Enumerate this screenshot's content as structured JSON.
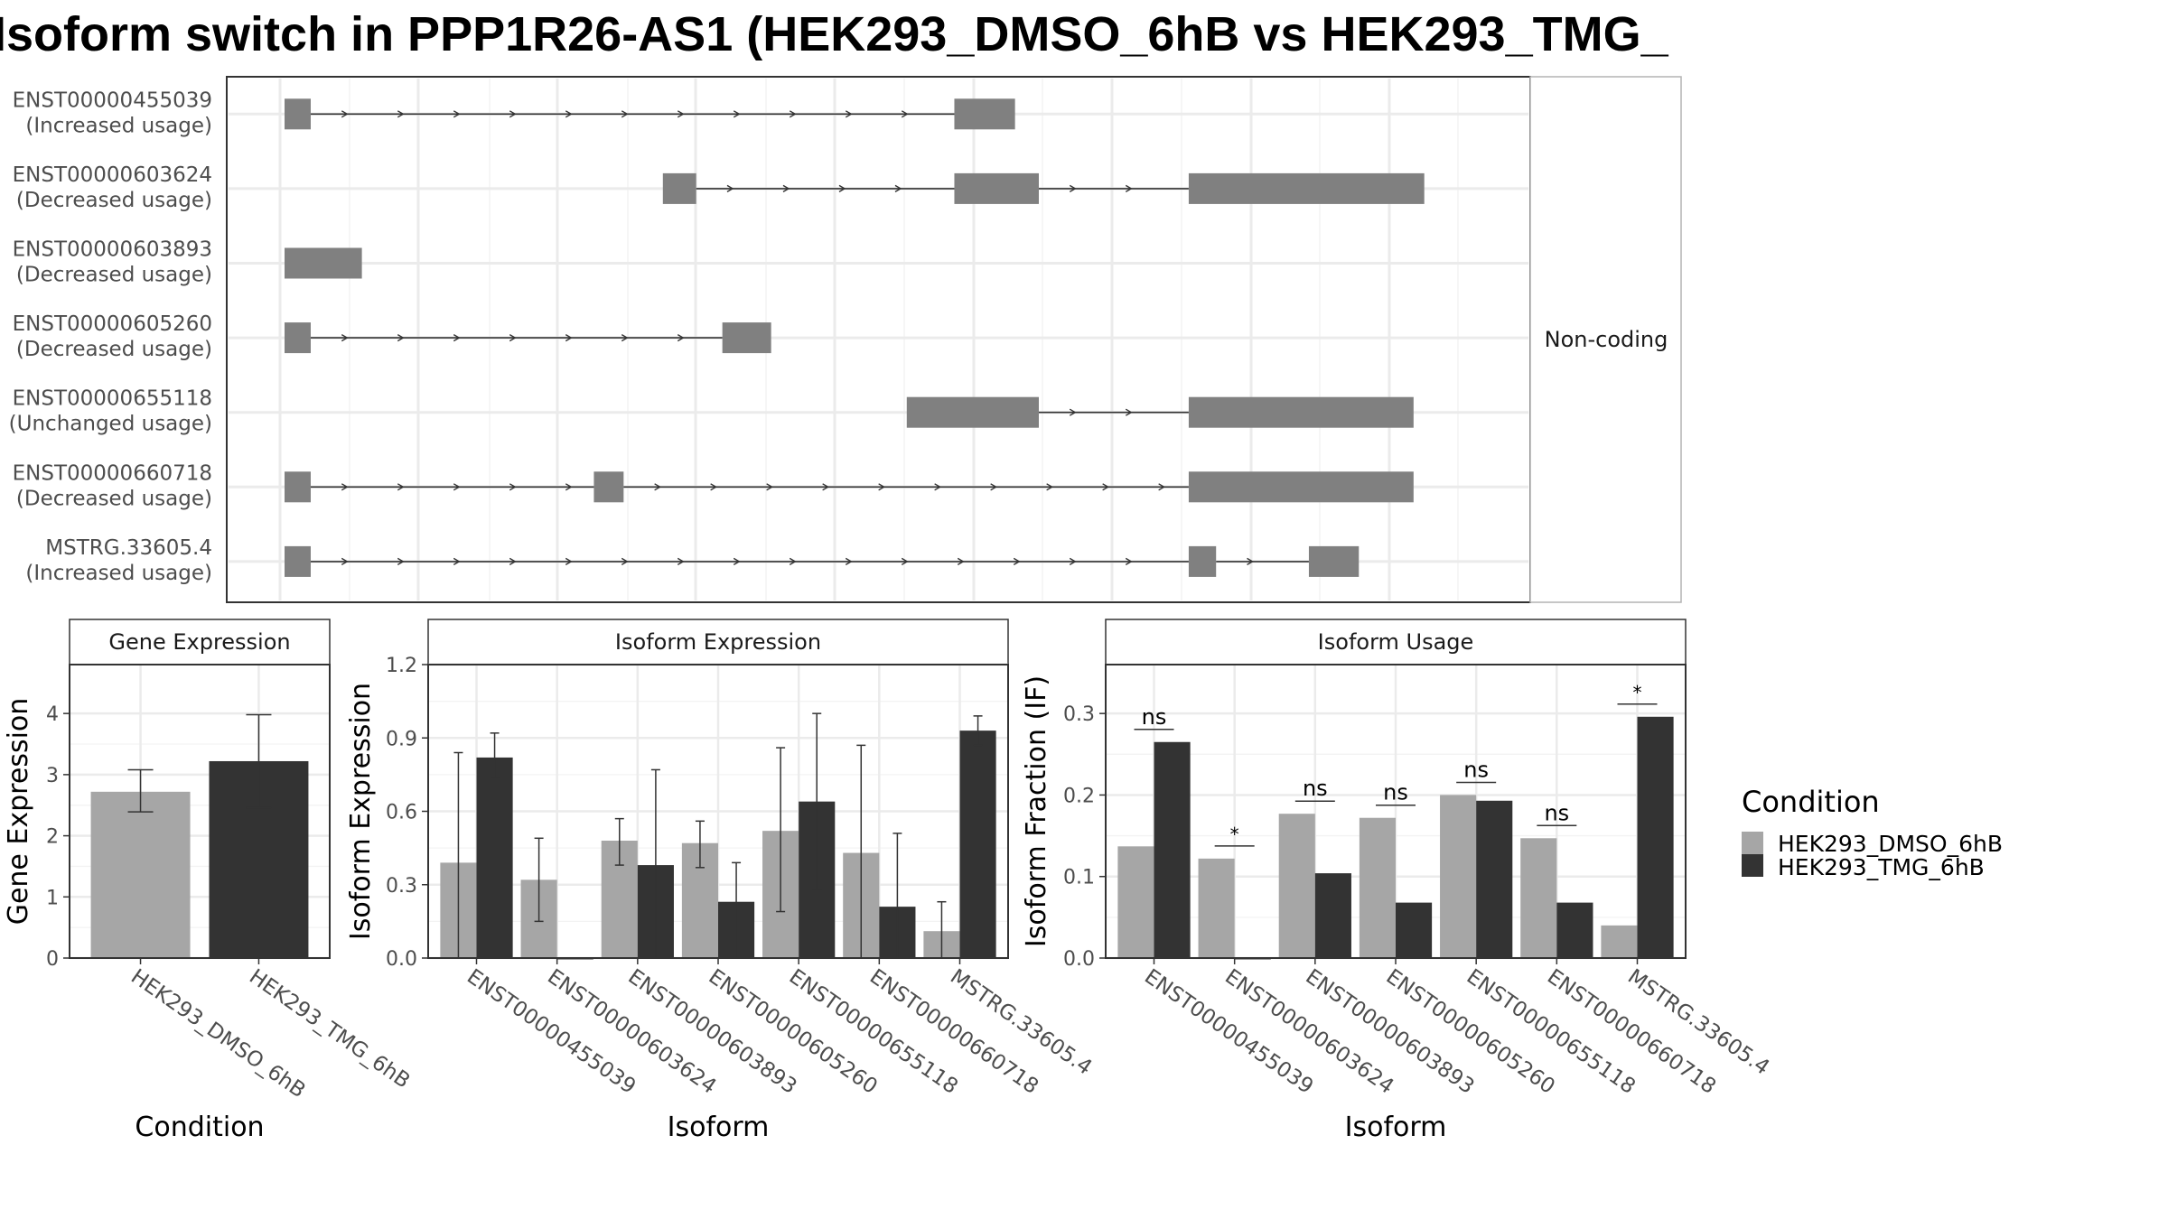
{
  "title": "Isoform switch in PPP1R26-AS1 (HEK293_DMSO_6hB vs HEK293_TMG_",
  "colors": {
    "dmso": "#a6a6a6",
    "tmg": "#333333",
    "exon": "#808080",
    "grid": "#ebebeb",
    "border": "#333333",
    "strip": "#ffffff"
  },
  "structure": {
    "coding_label": "Non-coding",
    "x_range": [
      0,
      1000
    ],
    "isoforms": [
      {
        "id": "ENST00000455039",
        "usage": "(Increased usage)",
        "exons": [
          [
            0,
            22
          ],
          [
            563,
            614
          ]
        ]
      },
      {
        "id": "ENST00000603624",
        "usage": "(Decreased usage)",
        "exons": [
          [
            318,
            346
          ],
          [
            563,
            634
          ],
          [
            760,
            958
          ]
        ]
      },
      {
        "id": "ENST00000603893",
        "usage": "(Decreased usage)",
        "exons": [
          [
            0,
            65
          ]
        ]
      },
      {
        "id": "ENST00000605260",
        "usage": "(Decreased usage)",
        "exons": [
          [
            0,
            22
          ],
          [
            368,
            409
          ]
        ]
      },
      {
        "id": "ENST00000655118",
        "usage": "(Unchanged usage)",
        "exons": [
          [
            523,
            634
          ],
          [
            760,
            949
          ]
        ]
      },
      {
        "id": "ENST00000660718",
        "usage": "(Decreased usage)",
        "exons": [
          [
            0,
            22
          ],
          [
            260,
            285
          ],
          [
            760,
            949
          ]
        ]
      },
      {
        "id": "MSTRG.33605.4",
        "usage": "(Increased usage)",
        "exons": [
          [
            0,
            22
          ],
          [
            760,
            783
          ],
          [
            861,
            903
          ]
        ]
      }
    ]
  },
  "chart_data": [
    {
      "type": "bar",
      "title": "Gene Expression",
      "xlabel": "Condition",
      "ylabel": "Gene Expression",
      "ylim": [
        0,
        4.8
      ],
      "yticks": [
        "0",
        "1",
        "2",
        "3",
        "4"
      ],
      "categories": [
        "HEK293_DMSO_6hB",
        "HEK293_TMG_6hB"
      ],
      "values": [
        2.72,
        3.22
      ],
      "error_low": [
        2.39,
        2.46
      ],
      "error_high": [
        3.08,
        3.98
      ]
    },
    {
      "type": "bar",
      "title": "Isoform Expression",
      "xlabel": "Isoform",
      "ylabel": "Isoform Expression",
      "ylim": [
        0,
        1.2
      ],
      "yticks": [
        "0.0",
        "0.3",
        "0.6",
        "0.9",
        "1.2"
      ],
      "categories": [
        "ENST00000455039",
        "ENST00000603624",
        "ENST00000603893",
        "ENST00000605260",
        "ENST00000655118",
        "ENST00000660718",
        "MSTRG.33605.4"
      ],
      "series": [
        {
          "name": "HEK293_DMSO_6hB",
          "values": [
            0.39,
            0.32,
            0.48,
            0.47,
            0.52,
            0.43,
            0.11
          ],
          "error_low": [
            0.0,
            0.15,
            0.38,
            0.37,
            0.19,
            0.0,
            0.0
          ],
          "error_high": [
            0.84,
            0.49,
            0.57,
            0.56,
            0.86,
            0.87,
            0.23
          ]
        },
        {
          "name": "HEK293_TMG_6hB",
          "values": [
            0.82,
            0.0,
            0.38,
            0.23,
            0.64,
            0.21,
            0.93
          ],
          "error_low": [
            0.74,
            0.0,
            0.0,
            0.0,
            0.28,
            0.0,
            0.87
          ],
          "error_high": [
            0.92,
            0.0,
            0.77,
            0.39,
            1.0,
            0.51,
            0.99
          ]
        }
      ]
    },
    {
      "type": "bar",
      "title": "Isoform Usage",
      "xlabel": "Isoform",
      "ylabel": "Isoform Fraction (IF)",
      "ylim": [
        0,
        0.36
      ],
      "yticks": [
        "0.0",
        "0.1",
        "0.2",
        "0.3"
      ],
      "categories": [
        "ENST00000455039",
        "ENST00000603624",
        "ENST00000603893",
        "ENST00000605260",
        "ENST00000655118",
        "ENST00000660718",
        "MSTRG.33605.4"
      ],
      "series": [
        {
          "name": "HEK293_DMSO_6hB",
          "values": [
            0.137,
            0.122,
            0.177,
            0.172,
            0.2,
            0.147,
            0.04
          ]
        },
        {
          "name": "HEK293_TMG_6hB",
          "values": [
            0.265,
            0.0,
            0.104,
            0.068,
            0.193,
            0.068,
            0.296
          ]
        }
      ],
      "significance": [
        "ns",
        "*",
        "ns",
        "ns",
        "ns",
        "ns",
        "*"
      ]
    }
  ],
  "legend": {
    "title": "Condition",
    "entries": [
      "HEK293_DMSO_6hB",
      "HEK293_TMG_6hB"
    ]
  }
}
